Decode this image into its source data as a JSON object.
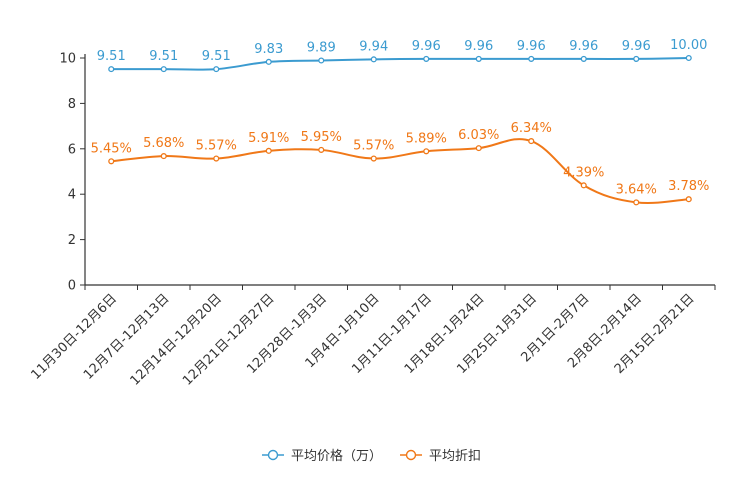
{
  "chart_data": {
    "type": "line",
    "categories": [
      "11月30日-12月6日",
      "12月7日-12月13日",
      "12月14日-12月20日",
      "12月21日-12月27日",
      "12月28日-1月3日",
      "1月4日-1月10日",
      "1月11日-1月17日",
      "1月18日-1月24日",
      "1月25日-1月31日",
      "2月1日-2月7日",
      "2月8日-2月14日",
      "2月15日-2月21日"
    ],
    "ylim": [
      0,
      10
    ],
    "yticks": [
      "0",
      "2",
      "4",
      "6",
      "8",
      "10"
    ],
    "series": [
      {
        "name": "平均价格（万）",
        "color": "#3b9bd0",
        "values": [
          9.51,
          9.51,
          9.51,
          9.83,
          9.89,
          9.94,
          9.96,
          9.96,
          9.96,
          9.96,
          9.96,
          10.0
        ],
        "labels": [
          "9.51",
          "9.51",
          "9.51",
          "9.83",
          "9.89",
          "9.94",
          "9.96",
          "9.96",
          "9.96",
          "9.96",
          "9.96",
          "10.00"
        ]
      },
      {
        "name": "平均折扣",
        "color": "#f07818",
        "values": [
          5.45,
          5.68,
          5.57,
          5.91,
          5.95,
          5.57,
          5.89,
          6.03,
          6.34,
          4.39,
          3.64,
          3.78
        ],
        "labels": [
          "5.45%",
          "5.68%",
          "5.57%",
          "5.91%",
          "5.95%",
          "5.57%",
          "5.89%",
          "6.03%",
          "6.34%",
          "4.39%",
          "3.64%",
          "3.78%"
        ]
      }
    ],
    "title": "",
    "xlabel": "",
    "ylabel": "",
    "legend_position": "bottom-center"
  }
}
